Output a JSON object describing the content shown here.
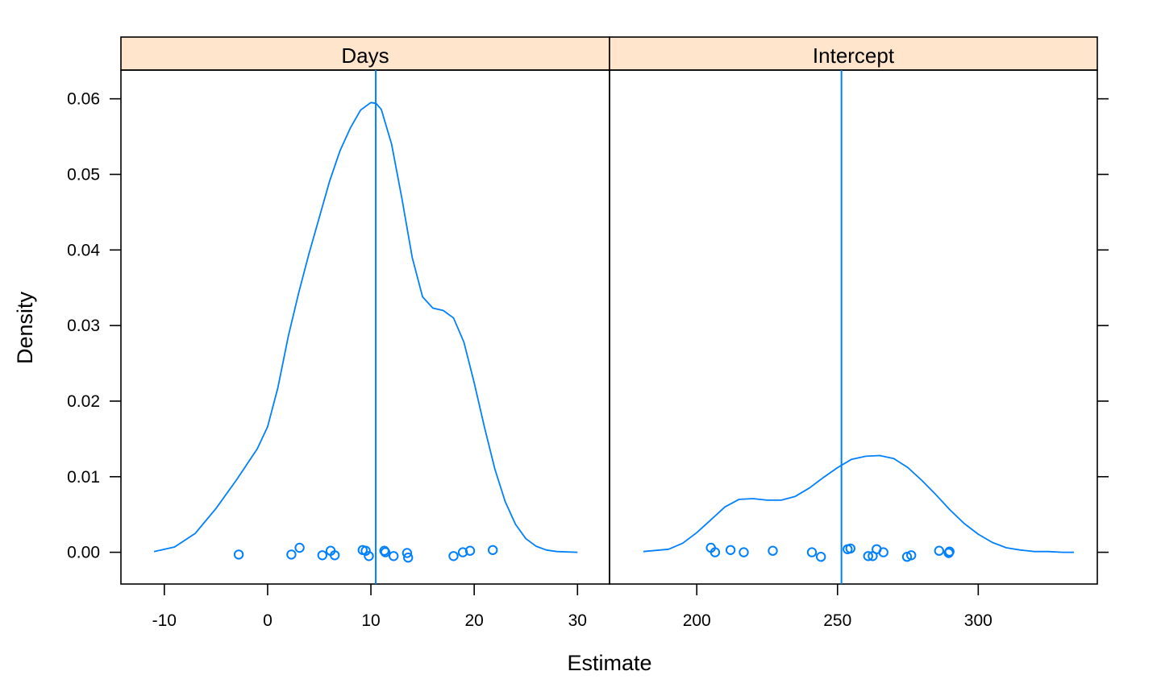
{
  "chart_data": {
    "type": "line",
    "subtype": "lattice densityplot with jittered points",
    "xlabel": "Estimate",
    "ylabel": "Density",
    "ylim": [
      -0.0042,
      0.0638
    ],
    "y_ticks": [
      0.0,
      0.01,
      0.02,
      0.03,
      0.04,
      0.05,
      0.06
    ],
    "y_tick_labels": [
      "0.00",
      "0.01",
      "0.02",
      "0.03",
      "0.04",
      "0.05",
      "0.06"
    ],
    "colors": {
      "series": "#0080ff",
      "strip": "#ffe5cc",
      "frame": "#000000"
    },
    "grid": false,
    "panels": [
      {
        "strip": "Days",
        "xlim": [
          -14.2,
          33.1
        ],
        "x_ticks": [
          -10,
          0,
          10,
          20,
          30
        ],
        "x_tick_labels": [
          "-10",
          "0",
          "10",
          "20",
          "30"
        ],
        "reference_x": 10.47,
        "density": {
          "x": [
            -11,
            -9,
            -7,
            -5,
            -3,
            -1,
            0,
            1,
            2,
            3,
            4,
            5,
            6,
            7,
            8,
            9,
            10,
            10.5,
            11,
            12,
            13,
            14,
            15,
            16,
            17,
            18,
            19,
            20,
            21,
            22,
            23,
            24,
            25,
            26,
            27,
            28,
            30
          ],
          "y": [
            0.0001,
            0.0007,
            0.0025,
            0.0058,
            0.0096,
            0.0137,
            0.0166,
            0.0218,
            0.0286,
            0.0343,
            0.0395,
            0.0443,
            0.0491,
            0.0531,
            0.0561,
            0.0585,
            0.0595,
            0.0594,
            0.0586,
            0.054,
            0.0468,
            0.039,
            0.0338,
            0.0323,
            0.032,
            0.031,
            0.0278,
            0.0224,
            0.0165,
            0.011,
            0.0067,
            0.0037,
            0.0018,
            0.0008,
            0.0003,
            0.0001,
            0.0
          ]
        },
        "points": {
          "x": [
            -2.8,
            2.3,
            3.1,
            5.3,
            6.1,
            6.5,
            9.2,
            9.5,
            9.8,
            11.3,
            11.4,
            12.2,
            13.5,
            13.6,
            18.0,
            18.9,
            19.6,
            21.8
          ],
          "y": [
            -0.0003,
            -0.0003,
            0.0006,
            -0.0004,
            0.0002,
            -0.0004,
            0.0003,
            0.0002,
            -0.0005,
            0.0002,
            0.0,
            -0.0005,
            -0.0001,
            -0.0007,
            -0.0005,
            0.0,
            0.0002,
            0.0003
          ]
        }
      },
      {
        "strip": "Intercept",
        "xlim": [
          169.0,
          342.3
        ],
        "x_ticks": [
          200,
          250,
          300
        ],
        "x_tick_labels": [
          "200",
          "250",
          "300"
        ],
        "reference_x": 251.4,
        "density": {
          "x": [
            181,
            190,
            195,
            200,
            205,
            210,
            215,
            220,
            225,
            230,
            235,
            240,
            245,
            250,
            255,
            260,
            265,
            270,
            275,
            280,
            285,
            290,
            295,
            300,
            305,
            310,
            315,
            320,
            325,
            330,
            334
          ],
          "y": [
            0.0001,
            0.0004,
            0.0012,
            0.0026,
            0.0043,
            0.006,
            0.007,
            0.0071,
            0.0069,
            0.0069,
            0.0074,
            0.0085,
            0.0099,
            0.0112,
            0.0123,
            0.0127,
            0.0128,
            0.0124,
            0.0112,
            0.0095,
            0.0076,
            0.0056,
            0.0038,
            0.0024,
            0.0013,
            0.0006,
            0.0003,
            0.0001,
            0.0001,
            0.0,
            0.0
          ]
        },
        "points": {
          "x": [
            205.0,
            206.5,
            212.0,
            216.7,
            227.0,
            240.9,
            244.1,
            253.6,
            254.6,
            260.9,
            262.5,
            263.9,
            266.3,
            274.7,
            276.2,
            286.1,
            289.5,
            289.8
          ],
          "y": [
            0.0006,
            0.0,
            0.0003,
            0.0,
            0.0002,
            0.0,
            -0.0006,
            0.0004,
            0.0005,
            -0.0005,
            -0.0005,
            0.0004,
            0.0,
            -0.0006,
            -0.0004,
            0.0002,
            -0.0001,
            0.0001
          ]
        }
      }
    ]
  }
}
